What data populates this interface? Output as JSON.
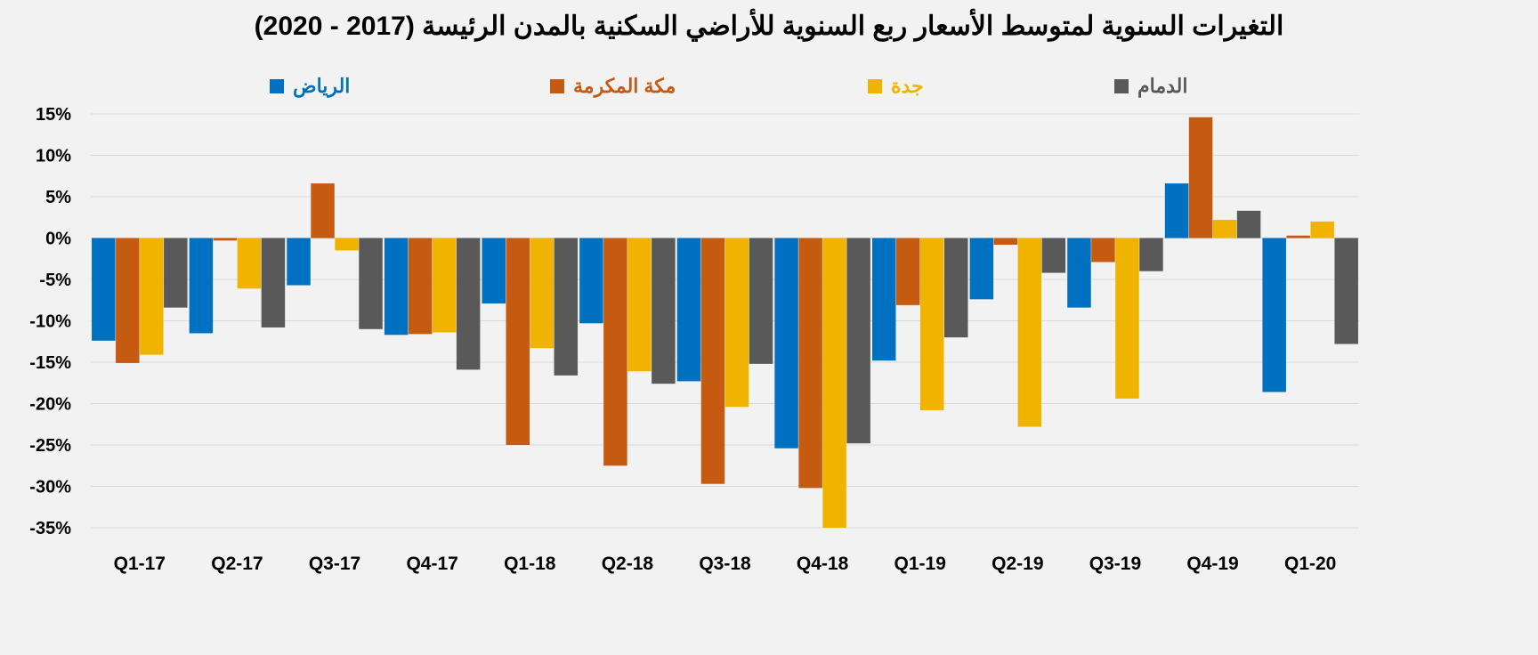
{
  "chart_data": {
    "type": "bar",
    "title": "التغيرات السنوية لمتوسط الأسعار ربع السنوية للأراضي السكنية بالمدن الرئيسة (2017 - 2020)",
    "xlabel": "",
    "ylabel": "",
    "ylim": [
      -35,
      15
    ],
    "yticks": [
      "15%",
      "10%",
      "5%",
      "0%",
      "-5%",
      "-10%",
      "-15%",
      "-20%",
      "-25%",
      "-30%",
      "-35%"
    ],
    "ytick_values": [
      15,
      10,
      5,
      0,
      -5,
      -10,
      -15,
      -20,
      -25,
      -30,
      -35
    ],
    "grid": true,
    "legend_position": "top",
    "categories": [
      "Q1-17",
      "Q2-17",
      "Q3-17",
      "Q4-17",
      "Q1-18",
      "Q2-18",
      "Q3-18",
      "Q4-18",
      "Q1-19",
      "Q2-19",
      "Q3-19",
      "Q4-19",
      "Q1-20"
    ],
    "series": [
      {
        "name": "الرياض",
        "color": "#0070C0",
        "values": [
          -12.4,
          -11.5,
          -5.7,
          -11.7,
          -7.9,
          -10.3,
          -17.3,
          -25.4,
          -14.8,
          -7.4,
          -8.4,
          6.6,
          -18.6
        ]
      },
      {
        "name": "مكة المكرمة",
        "color": "#C55A11",
        "values": [
          -15.1,
          -0.3,
          6.6,
          -11.6,
          -25.0,
          -27.5,
          -29.7,
          -30.2,
          -8.1,
          -0.8,
          -2.9,
          14.6,
          0.3
        ]
      },
      {
        "name": "جدة",
        "color": "#F0B400",
        "values": [
          -14.1,
          -6.1,
          -1.5,
          -11.4,
          -13.3,
          -16.1,
          -20.4,
          -35.0,
          -20.8,
          -22.8,
          -19.4,
          2.2,
          2.0
        ]
      },
      {
        "name": "الدمام",
        "color": "#595959",
        "values": [
          -8.4,
          -10.8,
          -11.0,
          -15.9,
          -16.6,
          -17.6,
          -15.2,
          -24.8,
          -12.0,
          -4.2,
          -4.0,
          3.3,
          -12.8
        ]
      }
    ]
  }
}
